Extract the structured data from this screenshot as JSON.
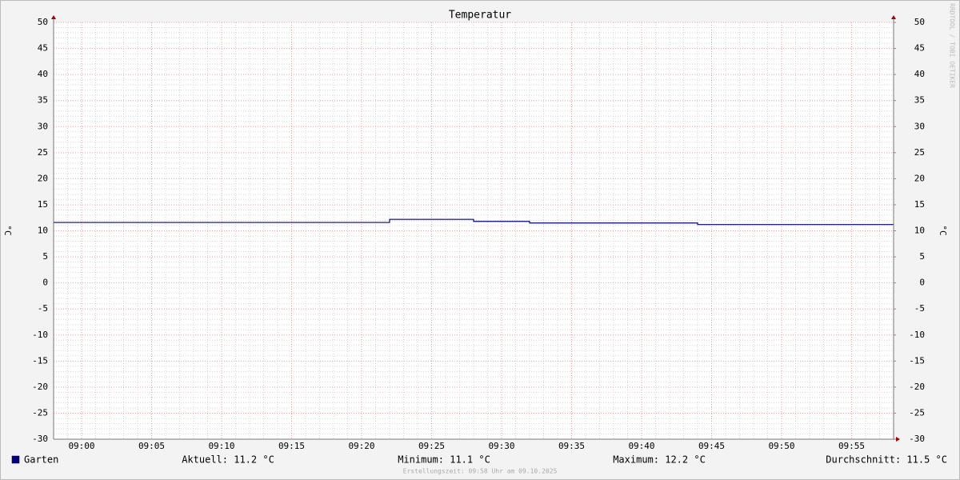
{
  "chart_data": {
    "type": "line",
    "title": "Temperatur",
    "y_label": "°C",
    "y2_label": "°C",
    "watermark": "RRDTOOL / TOBI OETIKER",
    "x": [
      "08:58",
      "09:22",
      "09:22",
      "09:28",
      "09:28",
      "09:32",
      "09:32",
      "09:44",
      "09:44",
      "09:58"
    ],
    "series": [
      {
        "name": "Garten",
        "color": "#00008b",
        "values": [
          11.6,
          11.6,
          12.2,
          12.2,
          11.8,
          11.8,
          11.5,
          11.5,
          11.2,
          11.2
        ]
      }
    ],
    "xlim": [
      "08:58",
      "09:58"
    ],
    "xticks": [
      "09:00",
      "09:05",
      "09:10",
      "09:15",
      "09:20",
      "09:25",
      "09:30",
      "09:35",
      "09:40",
      "09:45",
      "09:50",
      "09:55"
    ],
    "ylim": [
      -30,
      50
    ],
    "yticks": [
      -30,
      -25,
      -20,
      -15,
      -10,
      -5,
      0,
      5,
      10,
      15,
      20,
      25,
      30,
      35,
      40,
      45,
      50
    ],
    "y2lim": [
      -30,
      50
    ],
    "y2ticks": [
      -30,
      -25,
      -20,
      -15,
      -10,
      -5,
      0,
      5,
      10,
      15,
      20,
      25,
      30,
      35,
      40,
      45,
      50
    ],
    "grid": true,
    "stats": [
      "Aktuell: 11.2 °C",
      "Minimum: 11.1 °C",
      "Maximum: 12.2 °C",
      "Durchschnitt: 11.5 °C"
    ],
    "footer": "Erstellungszeit: 09:58 Uhr am 09.10.2025"
  }
}
